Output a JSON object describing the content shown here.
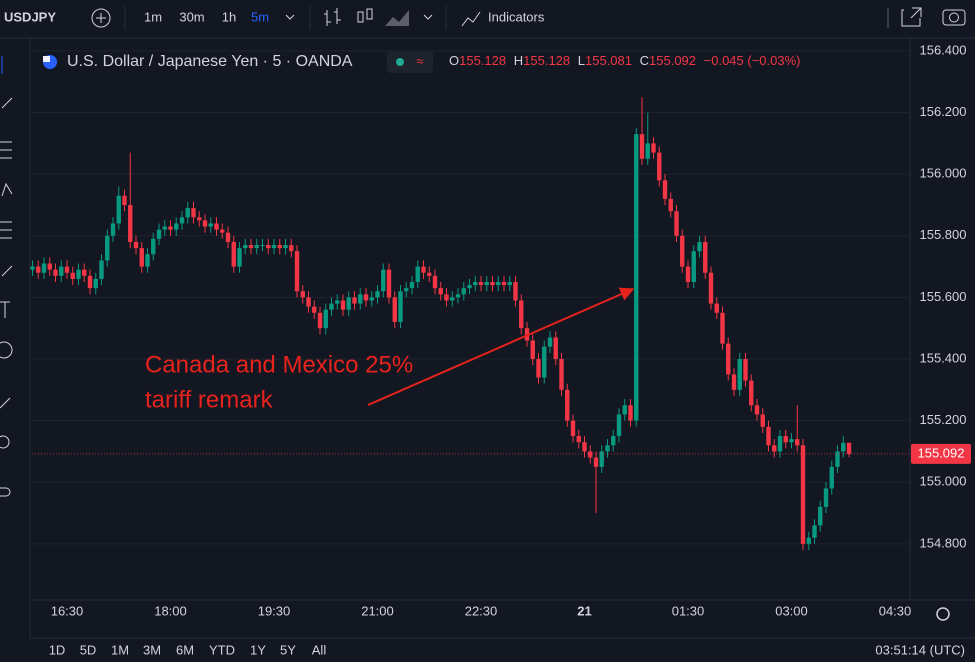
{
  "ui": {
    "symbol": "USDJPY",
    "intervals": [
      "1m",
      "30m",
      "1h",
      "5m"
    ],
    "indicators": "Indicators",
    "instrument": "U.S. Dollar / Japanese Yen · 5 · OANDA",
    "ohlc_labels": [
      "O",
      "H",
      "L",
      "C"
    ],
    "change": "−0.045 (−0.03%)",
    "ranges": [
      "1D",
      "5D",
      "1M",
      "3M",
      "6M",
      "YTD",
      "1Y",
      "5Y",
      "All"
    ],
    "clock": "03:51:14 (UTC)"
  },
  "chart_data": {
    "type": "candlestick",
    "categories": [
      null,
      null,
      null,
      null,
      null,
      null,
      "16:30",
      null,
      null,
      null,
      null,
      null,
      null,
      null,
      null,
      null,
      null,
      null,
      null,
      null,
      null,
      null,
      null,
      null,
      "18:00",
      null,
      null,
      null,
      null,
      null,
      null,
      null,
      null,
      null,
      null,
      null,
      null,
      null,
      null,
      null,
      null,
      null,
      "19:30",
      null,
      null,
      null,
      null,
      null,
      null,
      null,
      null,
      null,
      null,
      null,
      null,
      null,
      null,
      null,
      null,
      null,
      "21:00",
      null,
      null,
      null,
      null,
      null,
      null,
      null,
      null,
      null,
      null,
      null,
      null,
      null,
      null,
      null,
      null,
      null,
      "22:30",
      null,
      null,
      null,
      null,
      null,
      null,
      null,
      null,
      null,
      null,
      null,
      null,
      null,
      null,
      null,
      null,
      null,
      "21",
      null,
      null,
      null,
      null,
      null,
      null,
      null,
      null,
      null,
      null,
      null,
      null,
      null,
      null,
      null,
      null,
      null,
      "01:30",
      null,
      null,
      null,
      null,
      null,
      null,
      null,
      null,
      null,
      null,
      null,
      null,
      null,
      null,
      null,
      null,
      null,
      "03:00",
      null,
      null,
      null,
      null,
      null,
      null,
      null,
      null,
      null,
      null,
      null,
      null,
      null,
      null,
      null,
      null,
      null,
      "04:30"
    ],
    "open": [
      155.69,
      155.7,
      155.68,
      155.71,
      155.69,
      155.67,
      155.7,
      155.68,
      155.66,
      155.69,
      155.67,
      155.63,
      155.66,
      155.72,
      155.8,
      155.84,
      155.93,
      155.9,
      155.78,
      155.76,
      155.7,
      155.74,
      155.79,
      155.82,
      155.83,
      155.82,
      155.84,
      155.86,
      155.89,
      155.86,
      155.85,
      155.83,
      155.84,
      155.82,
      155.81,
      155.78,
      155.7,
      155.76,
      155.77,
      155.76,
      155.77,
      155.77,
      155.76,
      155.77,
      155.76,
      155.77,
      155.75,
      155.62,
      155.6,
      155.57,
      155.55,
      155.5,
      155.56,
      155.58,
      155.59,
      155.56,
      155.6,
      155.58,
      155.61,
      155.59,
      155.6,
      155.62,
      155.69,
      155.6,
      155.52,
      155.62,
      155.63,
      155.65,
      155.7,
      155.68,
      155.67,
      155.63,
      155.61,
      155.59,
      155.6,
      155.61,
      155.63,
      155.64,
      155.65,
      155.64,
      155.65,
      155.64,
      155.65,
      155.64,
      155.65,
      155.59,
      155.5,
      155.46,
      155.4,
      155.34,
      155.44,
      155.47,
      155.4,
      155.3,
      155.2,
      155.15,
      155.13,
      155.1,
      155.08,
      155.05,
      155.1,
      155.12,
      155.15,
      155.22,
      155.25,
      155.2,
      156.13,
      156.05,
      156.1,
      156.07,
      155.98,
      155.92,
      155.88,
      155.8,
      155.7,
      155.65,
      155.75,
      155.78,
      155.68,
      155.58,
      155.55,
      155.45,
      155.35,
      155.3,
      155.4,
      155.33,
      155.25,
      155.22,
      155.18,
      155.12,
      155.1,
      155.15,
      155.13,
      155.14,
      155.12,
      154.8,
      154.82,
      154.86,
      154.92,
      154.98,
      155.05,
      155.1,
      155.128,
      null,
      null,
      null,
      null,
      null,
      null,
      null,
      null
    ],
    "high": [
      155.72,
      155.72,
      155.73,
      155.73,
      155.71,
      155.72,
      155.72,
      155.7,
      155.71,
      155.71,
      155.69,
      155.68,
      155.74,
      155.82,
      155.86,
      155.96,
      155.95,
      156.07,
      155.8,
      155.78,
      155.76,
      155.81,
      155.84,
      155.85,
      155.85,
      155.86,
      155.88,
      155.91,
      155.91,
      155.88,
      155.87,
      155.86,
      155.86,
      155.84,
      155.83,
      155.8,
      155.78,
      155.79,
      155.79,
      155.79,
      155.79,
      155.79,
      155.79,
      155.79,
      155.79,
      155.79,
      155.77,
      155.64,
      155.62,
      155.59,
      155.57,
      155.58,
      155.6,
      155.61,
      155.61,
      155.62,
      155.62,
      155.63,
      155.63,
      155.62,
      155.64,
      155.71,
      155.71,
      155.62,
      155.64,
      155.65,
      155.67,
      155.72,
      155.72,
      155.7,
      155.69,
      155.65,
      155.63,
      155.62,
      155.63,
      155.65,
      155.66,
      155.67,
      155.67,
      155.67,
      155.67,
      155.67,
      155.67,
      155.67,
      155.67,
      155.61,
      155.52,
      155.48,
      155.42,
      155.46,
      155.49,
      155.49,
      155.42,
      155.32,
      155.22,
      155.17,
      155.15,
      155.12,
      155.1,
      155.12,
      155.14,
      155.17,
      155.24,
      155.27,
      155.27,
      156.15,
      156.25,
      156.2,
      156.12,
      156.09,
      156.0,
      155.94,
      155.9,
      155.82,
      155.72,
      155.77,
      155.8,
      155.8,
      155.7,
      155.6,
      155.57,
      155.47,
      155.37,
      155.42,
      155.42,
      155.35,
      155.27,
      155.24,
      155.2,
      155.14,
      155.17,
      155.17,
      155.16,
      155.25,
      155.14,
      154.84,
      154.88,
      154.94,
      155.0,
      155.07,
      155.12,
      155.15,
      155.128,
      null,
      null,
      null,
      null,
      null,
      null,
      null,
      null
    ],
    "low": [
      155.67,
      155.66,
      155.66,
      155.67,
      155.65,
      155.65,
      155.66,
      155.64,
      155.64,
      155.65,
      155.61,
      155.61,
      155.64,
      155.7,
      155.78,
      155.82,
      155.88,
      155.76,
      155.74,
      155.68,
      155.68,
      155.72,
      155.77,
      155.8,
      155.8,
      155.8,
      155.82,
      155.84,
      155.84,
      155.83,
      155.81,
      155.81,
      155.8,
      155.79,
      155.76,
      155.68,
      155.68,
      155.74,
      155.74,
      155.74,
      155.75,
      155.74,
      155.74,
      155.74,
      155.74,
      155.73,
      155.6,
      155.58,
      155.55,
      155.53,
      155.48,
      155.48,
      155.54,
      155.56,
      155.54,
      155.54,
      155.56,
      155.56,
      155.57,
      155.57,
      155.58,
      155.6,
      155.58,
      155.5,
      155.5,
      155.6,
      155.61,
      155.63,
      155.66,
      155.65,
      155.61,
      155.59,
      155.57,
      155.57,
      155.58,
      155.59,
      155.61,
      155.62,
      155.62,
      155.62,
      155.62,
      155.62,
      155.62,
      155.62,
      155.57,
      155.48,
      155.44,
      155.38,
      155.32,
      155.32,
      155.42,
      155.38,
      155.28,
      155.18,
      155.13,
      155.11,
      155.08,
      155.06,
      154.9,
      155.03,
      155.08,
      155.1,
      155.13,
      155.2,
      155.18,
      155.18,
      156.03,
      156.03,
      156.05,
      155.96,
      155.9,
      155.86,
      155.78,
      155.68,
      155.63,
      155.63,
      155.73,
      155.66,
      155.56,
      155.53,
      155.43,
      155.33,
      155.28,
      155.28,
      155.31,
      155.23,
      155.2,
      155.16,
      155.1,
      155.08,
      155.08,
      155.11,
      155.11,
      155.1,
      154.78,
      154.78,
      154.8,
      154.84,
      154.9,
      154.96,
      155.03,
      155.08,
      155.081,
      null,
      null,
      null,
      null,
      null,
      null,
      null,
      null
    ],
    "close": [
      155.7,
      155.68,
      155.71,
      155.69,
      155.67,
      155.7,
      155.68,
      155.66,
      155.69,
      155.67,
      155.63,
      155.66,
      155.72,
      155.8,
      155.84,
      155.93,
      155.9,
      155.78,
      155.76,
      155.7,
      155.74,
      155.79,
      155.82,
      155.83,
      155.82,
      155.84,
      155.86,
      155.89,
      155.86,
      155.85,
      155.83,
      155.84,
      155.82,
      155.81,
      155.78,
      155.7,
      155.76,
      155.77,
      155.76,
      155.77,
      155.77,
      155.76,
      155.77,
      155.76,
      155.77,
      155.75,
      155.62,
      155.6,
      155.57,
      155.55,
      155.5,
      155.56,
      155.58,
      155.59,
      155.56,
      155.6,
      155.58,
      155.61,
      155.59,
      155.6,
      155.62,
      155.69,
      155.6,
      155.52,
      155.62,
      155.63,
      155.65,
      155.7,
      155.68,
      155.67,
      155.63,
      155.61,
      155.59,
      155.6,
      155.61,
      155.63,
      155.64,
      155.65,
      155.64,
      155.65,
      155.64,
      155.65,
      155.64,
      155.65,
      155.59,
      155.5,
      155.46,
      155.4,
      155.34,
      155.44,
      155.47,
      155.4,
      155.3,
      155.2,
      155.15,
      155.13,
      155.1,
      155.08,
      155.05,
      155.1,
      155.12,
      155.15,
      155.22,
      155.25,
      155.2,
      156.13,
      156.05,
      156.1,
      156.07,
      155.98,
      155.92,
      155.88,
      155.8,
      155.7,
      155.65,
      155.75,
      155.78,
      155.68,
      155.58,
      155.55,
      155.45,
      155.35,
      155.3,
      155.4,
      155.33,
      155.25,
      155.22,
      155.18,
      155.12,
      155.1,
      155.15,
      155.13,
      155.14,
      155.12,
      154.8,
      154.82,
      154.86,
      154.92,
      154.98,
      155.05,
      155.1,
      155.128,
      155.092,
      null,
      null,
      null,
      null,
      null,
      null,
      null,
      null
    ],
    "up_color": "#089981",
    "down_color": "#f23645",
    "ylim": [
      154.634,
      156.429
    ],
    "yticks": [
      {
        "value": 154.8,
        "label": "154.800"
      },
      {
        "value": 155.0,
        "label": "155.000"
      },
      {
        "value": 155.2,
        "label": "155.200"
      },
      {
        "value": 155.4,
        "label": "155.400"
      },
      {
        "value": 155.6,
        "label": "155.600"
      },
      {
        "value": 155.8,
        "label": "155.800"
      },
      {
        "value": 156.0,
        "label": "156.000"
      },
      {
        "value": 156.2,
        "label": "156.200"
      },
      {
        "value": 156.4,
        "label": "156.400"
      }
    ],
    "grid": true,
    "annotation": {
      "lines": [
        "Canada and Mexico 25%",
        "tariff remark"
      ],
      "color": "#e8221c"
    }
  }
}
